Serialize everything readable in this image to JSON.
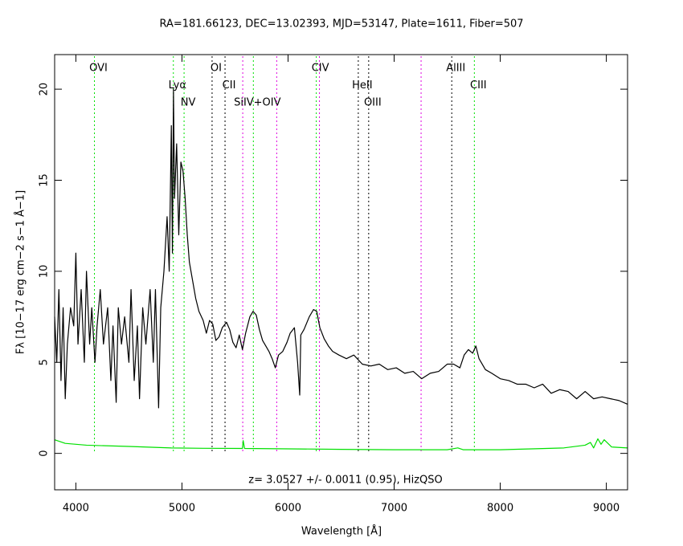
{
  "chart_data": {
    "type": "line",
    "title": "RA=181.66123, DEC=13.02393, MJD=53147, Plate=1611, Fiber=507",
    "xlabel": "Wavelength [Å]",
    "ylabel": "Fλ [10−17 erg cm−2 s−1 Å−1]",
    "annotation": "z= 3.0527 +/- 0.0011 (0.95), HizQSO",
    "xlim": [
      3800,
      9200
    ],
    "ylim": [
      -2,
      21.9
    ],
    "xticks": [
      4000,
      5000,
      6000,
      7000,
      8000,
      9000
    ],
    "yticks": [
      0,
      5,
      10,
      15,
      20
    ],
    "series": [
      {
        "color": "#000000",
        "x": [
          3800,
          3820,
          3840,
          3860,
          3880,
          3900,
          3920,
          3950,
          3980,
          4000,
          4020,
          4050,
          4080,
          4100,
          4130,
          4150,
          4180,
          4200,
          4230,
          4260,
          4300,
          4330,
          4350,
          4380,
          4400,
          4430,
          4460,
          4500,
          4520,
          4550,
          4580,
          4600,
          4630,
          4660,
          4700,
          4730,
          4750,
          4780,
          4800,
          4830,
          4860,
          4880,
          4900,
          4910,
          4920,
          4930,
          4950,
          4970,
          4990,
          5010,
          5030,
          5050,
          5070,
          5100,
          5130,
          5160,
          5200,
          5230,
          5260,
          5290,
          5320,
          5350,
          5380,
          5420,
          5450,
          5480,
          5510,
          5540,
          5570,
          5600,
          5640,
          5670,
          5700,
          5730,
          5760,
          5790,
          5820,
          5850,
          5880,
          5910,
          5950,
          5990,
          6020,
          6060,
          6090,
          6110,
          6120,
          6150,
          6200,
          6240,
          6270,
          6300,
          6340,
          6380,
          6420,
          6480,
          6550,
          6620,
          6700,
          6780,
          6860,
          6940,
          7020,
          7100,
          7180,
          7260,
          7340,
          7420,
          7500,
          7560,
          7620,
          7660,
          7700,
          7740,
          7770,
          7800,
          7860,
          7920,
          8000,
          8080,
          8160,
          8240,
          8320,
          8400,
          8480,
          8560,
          8640,
          8720,
          8800,
          8880,
          8960,
          9040,
          9120,
          9200
        ],
        "values": [
          7.5,
          5,
          9,
          4,
          8,
          3,
          6,
          8,
          7,
          11,
          6,
          9,
          5,
          10,
          6,
          8,
          5,
          7,
          9,
          6,
          8,
          4,
          7,
          2.8,
          8,
          6,
          7.5,
          5,
          9,
          4,
          7,
          3,
          8,
          6,
          9,
          5,
          9,
          2.5,
          8,
          10,
          13,
          10,
          18,
          11,
          20,
          14,
          17,
          12,
          16,
          15.5,
          14,
          12,
          10.5,
          9.5,
          8.5,
          7.8,
          7.3,
          6.6,
          7.3,
          7.1,
          6.2,
          6.4,
          6.9,
          7.2,
          6.8,
          6.1,
          5.8,
          6.5,
          5.7,
          6.6,
          7.5,
          7.8,
          7.6,
          6.8,
          6.2,
          5.9,
          5.6,
          5.2,
          4.7,
          5.4,
          5.6,
          6.1,
          6.6,
          6.9,
          5.0,
          3.2,
          6.5,
          6.8,
          7.5,
          7.9,
          7.8,
          6.9,
          6.3,
          5.9,
          5.6,
          5.4,
          5.2,
          5.4,
          4.9,
          4.8,
          4.9,
          4.6,
          4.7,
          4.4,
          4.5,
          4.1,
          4.4,
          4.5,
          4.9,
          4.9,
          4.7,
          5.4,
          5.7,
          5.5,
          5.9,
          5.2,
          4.6,
          4.4,
          4.1,
          4.0,
          3.8,
          3.8,
          3.6,
          3.8,
          3.3,
          3.5,
          3.4,
          3.0,
          3.4,
          3.0,
          3.1,
          3.0,
          2.9,
          2.7
        ]
      },
      {
        "color": "#00e000",
        "x": [
          3800,
          3900,
          4100,
          4500,
          4900,
          5200,
          5570,
          5577,
          5590,
          6000,
          6500,
          7000,
          7500,
          7600,
          7650,
          8000,
          8300,
          8600,
          8800,
          8850,
          8880,
          8920,
          8950,
          8980,
          9050,
          9200
        ],
        "values": [
          0.75,
          0.55,
          0.45,
          0.38,
          0.3,
          0.28,
          0.27,
          0.7,
          0.27,
          0.25,
          0.22,
          0.2,
          0.2,
          0.3,
          0.2,
          0.2,
          0.25,
          0.3,
          0.45,
          0.6,
          0.3,
          0.8,
          0.5,
          0.75,
          0.35,
          0.3
        ]
      }
    ],
    "lines": [
      {
        "x": 4175,
        "color": "#00e000",
        "label": "OVI"
      },
      {
        "x": 4919,
        "color": "#00e000",
        "label": "Lyα"
      },
      {
        "x": 5020,
        "color": "#00e000",
        "label": "NV"
      },
      {
        "x": 5284,
        "color": "#000000",
        "label": "OI"
      },
      {
        "x": 5406,
        "color": "#000000",
        "label": "CII"
      },
      {
        "x": 5573,
        "color": "#e000e0"
      },
      {
        "x": 5673,
        "color": "#00e000",
        "label": "SiIV+OIV"
      },
      {
        "x": 5893,
        "color": "#e000e0"
      },
      {
        "x": 6266,
        "color": "#00e000",
        "label": "CIV"
      },
      {
        "x": 6296,
        "color": "#e000e0"
      },
      {
        "x": 6662,
        "color": "#000000",
        "label": "HeII"
      },
      {
        "x": 6760,
        "color": "#000000",
        "label": "OIII"
      },
      {
        "x": 7254,
        "color": "#e000e0"
      },
      {
        "x": 7543,
        "color": "#000000",
        "label": "AlIII"
      },
      {
        "x": 7756,
        "color": "#00e000",
        "label": "CIII"
      }
    ]
  }
}
